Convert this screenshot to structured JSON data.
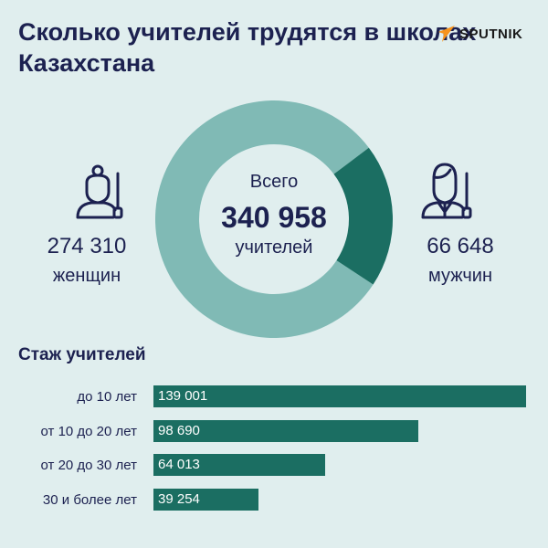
{
  "title": "Сколько учителей трудятся в школах Казахстана",
  "logo": "SPUTNIK",
  "colors": {
    "background": "#e0eeee",
    "women": "#80bab5",
    "men": "#1b6e62",
    "text": "#1c2150",
    "bar": "#1b6e62",
    "logo_accent": "#f7941d"
  },
  "total": {
    "label_top": "Всего",
    "value": "340 958",
    "label_bottom": "учителей"
  },
  "women": {
    "value": "274 310",
    "label": "женщин",
    "icon": "female-teacher-icon"
  },
  "men": {
    "value": "66 648",
    "label": "мужчин",
    "icon": "male-teacher-icon"
  },
  "chart_data": [
    {
      "type": "pie",
      "title": "Всего 340 958 учителей",
      "categories": [
        "женщин",
        "мужчин"
      ],
      "values": [
        274310,
        66648
      ],
      "donut": true
    },
    {
      "type": "bar",
      "orientation": "horizontal",
      "title": "Стаж учителей",
      "categories": [
        "до 10 лет",
        "от 10 до 20 лет",
        "от 20 до 30 лет",
        "30 и более лет"
      ],
      "values": [
        139001,
        98690,
        64013,
        39254
      ],
      "labels": [
        "139 001",
        "98 690",
        "64 013",
        "39 254"
      ]
    }
  ]
}
